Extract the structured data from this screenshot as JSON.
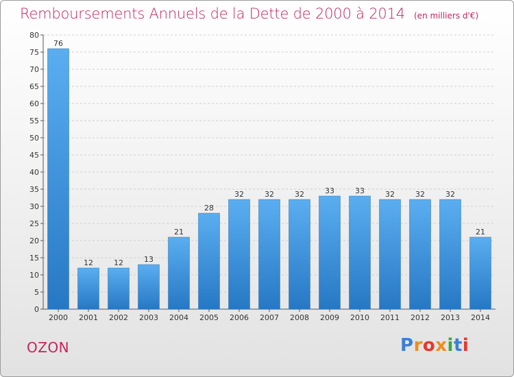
{
  "title": "Remboursements Annuels de la Dette de 2000 à 2014",
  "subtitle": "(en milliers d'€)",
  "commune": "OZON",
  "logo": {
    "letters": [
      {
        "ch": "P",
        "color": "#3a7fd4"
      },
      {
        "ch": "r",
        "color": "#f08c1c"
      },
      {
        "ch": "o",
        "color": "#e8352b"
      },
      {
        "ch": "x",
        "color": "#f08c1c"
      },
      {
        "ch": "i",
        "color": "#3aa83f"
      },
      {
        "ch": "t",
        "color": "#3a7fd4"
      },
      {
        "ch": "i",
        "color": "#e8352b"
      }
    ]
  },
  "colors": {
    "bar": "#3a8fd8",
    "title": "#c1245e"
  },
  "chart_data": {
    "type": "bar",
    "categories": [
      "2000",
      "2001",
      "2002",
      "2003",
      "2004",
      "2005",
      "2006",
      "2007",
      "2008",
      "2009",
      "2010",
      "2011",
      "2012",
      "2013",
      "2014"
    ],
    "values": [
      76,
      12,
      12,
      13,
      21,
      28,
      32,
      32,
      32,
      33,
      33,
      32,
      32,
      32,
      21
    ],
    "ylim": [
      0,
      80
    ],
    "yticks": [
      0,
      5,
      10,
      15,
      20,
      25,
      30,
      35,
      40,
      45,
      50,
      55,
      60,
      65,
      70,
      75,
      80
    ],
    "grid": true,
    "xlabel": "",
    "ylabel": ""
  }
}
